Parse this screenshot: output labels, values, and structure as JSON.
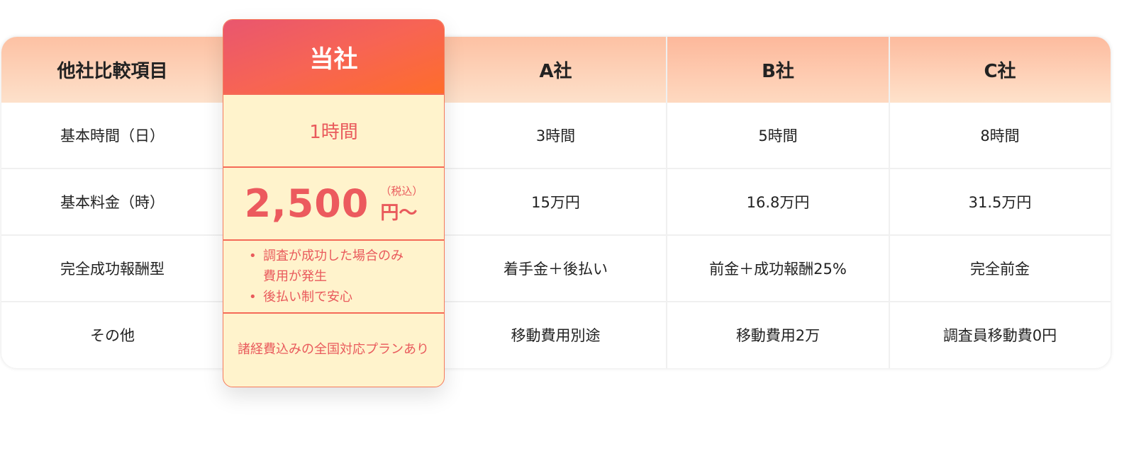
{
  "header": {
    "label_col": "他社比較項目",
    "featured": "当社",
    "companies": [
      "A社",
      "B社",
      "C社"
    ]
  },
  "rows": [
    {
      "label": "基本時間（日）",
      "values": [
        "3時間",
        "5時間",
        "8時間"
      ]
    },
    {
      "label": "基本料金（時）",
      "values": [
        "15万円",
        "16.8万円",
        "31.5万円"
      ]
    },
    {
      "label": "完全成功報酬型",
      "values": [
        "着手金＋後払い",
        "前金＋成功報酬25%",
        "完全前金"
      ]
    },
    {
      "label": "その他",
      "values": [
        "移動費用別途",
        "移動費用2万",
        "調査員移動費0円"
      ]
    }
  ],
  "featured": {
    "time": "1時間",
    "price": "2,500",
    "tax": "（税込）",
    "unit": "円〜",
    "bullets": [
      "調査が成功した場合のみ費用が発生",
      "後払い制で安心"
    ],
    "other": "諸経費込みの全国対応プランあり"
  },
  "colors": {
    "accent": "#ec5a5e",
    "gradient_start": "#e9566f",
    "gradient_end": "#fe6d2b",
    "card_bg": "#fff3cc",
    "header_bg": "#fdc1a3"
  }
}
